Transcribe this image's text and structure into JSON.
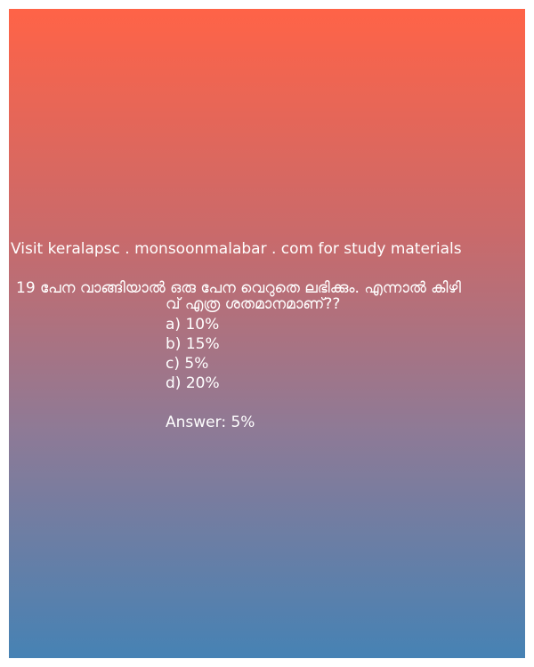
{
  "site_line": "Visit keralapsc . monsoonmalabar . com for study materials",
  "question": {
    "line1": "19 പേന വാങ്ങിയാൽ ഒരു പേന വെറുതെ ലഭിക്കും. എന്നാൽ കിഴി",
    "line2": "വ് എത്ര ശതമാനമാണ്??"
  },
  "options": [
    "a) 10%",
    "b) 15%",
    "c) 5%",
    "d) 20%"
  ],
  "answer": "Answer: 5%",
  "colors": {
    "gradient_top": "#ff6347",
    "gradient_bottom": "#4682b4",
    "text": "#ffffff"
  }
}
